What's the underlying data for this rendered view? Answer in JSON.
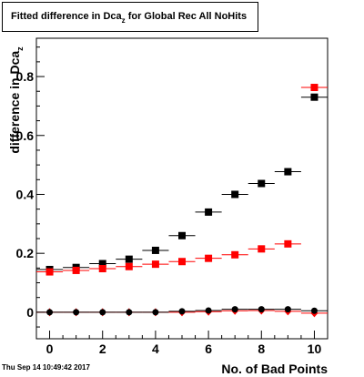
{
  "title": {
    "main": "Fitted difference in Dca",
    "sub": "z",
    "rest": " for Global Rec All NoHits"
  },
  "timestamp": "Thu Sep 14 10:49:42 2017",
  "colors": {
    "black_series": "#000000",
    "red_series": "#ff0000",
    "axis": "#000000"
  },
  "chart_data": {
    "type": "scatter",
    "title": "Fitted difference in Dca_z for Global Rec All NoHits",
    "xlabel": "No. of Bad Points",
    "ylabel_main": "difference in Dca",
    "ylabel_sub": "z",
    "xlim": [
      -0.5,
      10.5
    ],
    "ylim": [
      -0.09,
      0.93
    ],
    "x_ticks": [
      0,
      2,
      4,
      6,
      8,
      10
    ],
    "x_tick_labels": [
      "0",
      "2",
      "4",
      "6",
      "8",
      "10"
    ],
    "y_ticks": [
      0,
      0.2,
      0.4,
      0.6,
      0.8
    ],
    "y_tick_labels": [
      "0",
      "0.2",
      "0.4",
      "0.6",
      "0.8"
    ],
    "grid": false,
    "series": [
      {
        "marker": "square",
        "color": "#000000",
        "x": [
          0,
          1,
          2,
          3,
          4,
          5,
          6,
          7,
          8,
          9,
          10
        ],
        "y": [
          0.145,
          0.152,
          0.165,
          0.18,
          0.21,
          0.26,
          0.34,
          0.4,
          0.437,
          0.477,
          0.73
        ]
      },
      {
        "marker": "square",
        "color": "#ff0000",
        "x": [
          0,
          1,
          2,
          3,
          4,
          5,
          6,
          7,
          8,
          9,
          10
        ],
        "y": [
          0.137,
          0.142,
          0.148,
          0.155,
          0.163,
          0.172,
          0.183,
          0.195,
          0.215,
          0.232,
          0.763
        ]
      },
      {
        "marker": "circle",
        "color": "#000000",
        "x": [
          0,
          1,
          2,
          3,
          4,
          5,
          6,
          7,
          8,
          9,
          10
        ],
        "y": [
          0.0,
          0.0,
          0.0,
          0.0,
          0.0,
          0.003,
          0.006,
          0.01,
          0.01,
          0.01,
          0.005
        ]
      },
      {
        "marker": "diamond",
        "color": "#ff0000",
        "x": [
          0,
          1,
          2,
          3,
          4,
          5,
          6,
          7,
          8,
          9,
          10
        ],
        "y": [
          0.0,
          0.0,
          0.0,
          0.0,
          0.0,
          0.0,
          0.002,
          0.005,
          0.006,
          0.003,
          -0.003
        ]
      }
    ]
  }
}
